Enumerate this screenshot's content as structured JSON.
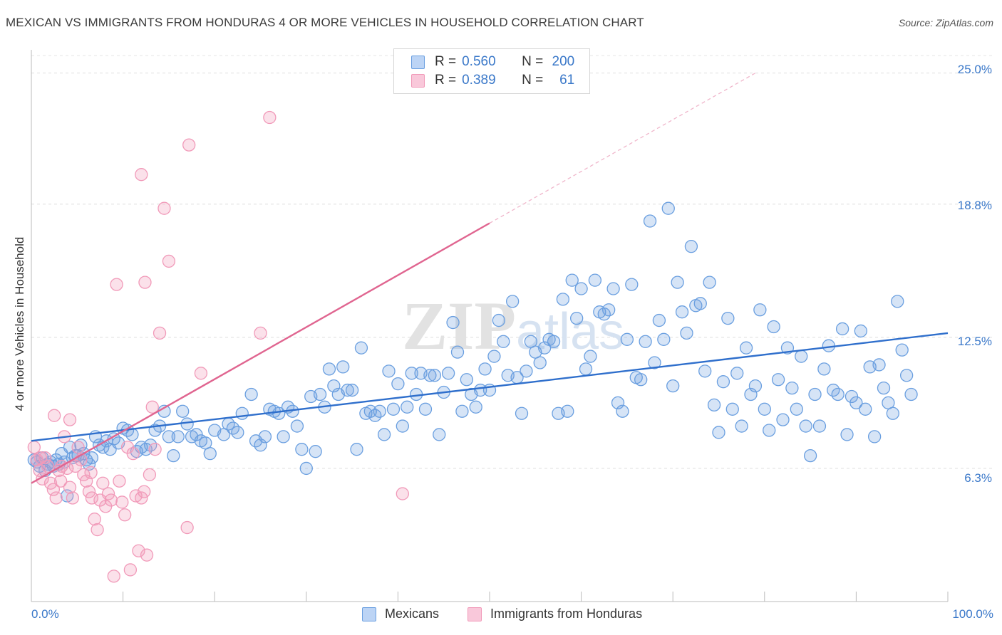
{
  "title": "MEXICAN VS IMMIGRANTS FROM HONDURAS 4 OR MORE VEHICLES IN HOUSEHOLD CORRELATION CHART",
  "source": "Source: ZipAtlas.com",
  "watermark": "ZIPatlas",
  "legend": {
    "series1": {
      "r_label": "R = ",
      "r_value": "0.560",
      "n_label": "N = ",
      "n_value": "200"
    },
    "series2": {
      "r_label": "R = ",
      "r_value": "0.389",
      "n_label": "N = ",
      "n_value": "61"
    }
  },
  "chart_data": {
    "type": "scatter",
    "ylabel": "4 or more Vehicles in Household",
    "xlabel": "",
    "x_tick_labels": [
      "0.0%",
      "100.0%"
    ],
    "y_tick_labels": [
      "6.3%",
      "12.5%",
      "18.8%",
      "25.0%"
    ],
    "y_ticks": [
      6.3,
      12.5,
      18.8,
      25.0
    ],
    "xlim": [
      0,
      100
    ],
    "ylim": [
      0,
      26.1
    ],
    "grid": true,
    "legend_position": "top-center",
    "colors": {
      "mexicans": "#6a9fe0",
      "honduras": "#f19ab9",
      "mexicans_line": "#2f6fcc",
      "honduras_line": "#e06590"
    },
    "series": [
      {
        "name": "Mexicans",
        "trend": {
          "x0": 0,
          "y0": 7.6,
          "x1": 100,
          "y1": 12.7
        },
        "points": [
          [
            0.3,
            6.7
          ],
          [
            0.6,
            6.6
          ],
          [
            0.9,
            6.4
          ],
          [
            1.2,
            6.8
          ],
          [
            1.5,
            6.2
          ],
          [
            1.8,
            6.5
          ],
          [
            2.1,
            6.6
          ],
          [
            2.4,
            6.4
          ],
          [
            2.7,
            6.7
          ],
          [
            3.0,
            6.5
          ],
          [
            3.3,
            7.0
          ],
          [
            3.6,
            6.6
          ],
          [
            3.9,
            5.0
          ],
          [
            4.2,
            7.3
          ],
          [
            4.5,
            6.8
          ],
          [
            4.8,
            6.9
          ],
          [
            5.1,
            6.9
          ],
          [
            5.4,
            7.4
          ],
          [
            5.7,
            7.0
          ],
          [
            6.0,
            6.7
          ],
          [
            6.3,
            6.5
          ],
          [
            6.6,
            6.8
          ],
          [
            7.0,
            7.8
          ],
          [
            7.4,
            7.4
          ],
          [
            7.8,
            7.3
          ],
          [
            8.2,
            7.6
          ],
          [
            8.6,
            7.2
          ],
          [
            9.0,
            7.7
          ],
          [
            9.5,
            7.5
          ],
          [
            10.0,
            8.2
          ],
          [
            10.5,
            8.1
          ],
          [
            11.0,
            7.9
          ],
          [
            11.5,
            7.1
          ],
          [
            12.0,
            7.3
          ],
          [
            12.5,
            7.2
          ],
          [
            13.0,
            7.4
          ],
          [
            13.5,
            8.1
          ],
          [
            14.0,
            8.3
          ],
          [
            14.5,
            9.0
          ],
          [
            15.0,
            7.8
          ],
          [
            15.5,
            6.9
          ],
          [
            16.0,
            7.8
          ],
          [
            16.5,
            9.0
          ],
          [
            17.0,
            8.4
          ],
          [
            17.5,
            7.8
          ],
          [
            18.0,
            7.9
          ],
          [
            18.5,
            7.6
          ],
          [
            19.0,
            7.5
          ],
          [
            19.5,
            7.0
          ],
          [
            20.0,
            8.1
          ],
          [
            21.0,
            7.9
          ],
          [
            21.5,
            8.4
          ],
          [
            22.0,
            8.2
          ],
          [
            22.5,
            8.0
          ],
          [
            23.0,
            8.9
          ],
          [
            24.0,
            9.8
          ],
          [
            24.5,
            7.6
          ],
          [
            25.0,
            7.4
          ],
          [
            25.5,
            7.8
          ],
          [
            26.0,
            9.1
          ],
          [
            26.5,
            9.0
          ],
          [
            27.0,
            8.9
          ],
          [
            27.5,
            7.8
          ],
          [
            28.0,
            9.2
          ],
          [
            28.5,
            9.0
          ],
          [
            29.0,
            8.3
          ],
          [
            29.5,
            7.2
          ],
          [
            30.0,
            6.3
          ],
          [
            30.5,
            9.7
          ],
          [
            31.0,
            7.1
          ],
          [
            31.5,
            9.8
          ],
          [
            32.0,
            9.2
          ],
          [
            32.5,
            11.0
          ],
          [
            33.0,
            10.2
          ],
          [
            33.5,
            9.8
          ],
          [
            34.0,
            11.1
          ],
          [
            34.5,
            10.0
          ],
          [
            35.0,
            10.0
          ],
          [
            35.5,
            7.2
          ],
          [
            36.0,
            12.0
          ],
          [
            36.5,
            8.9
          ],
          [
            37.0,
            9.0
          ],
          [
            37.5,
            8.8
          ],
          [
            38.0,
            9.0
          ],
          [
            38.5,
            7.9
          ],
          [
            39.0,
            10.9
          ],
          [
            39.5,
            9.1
          ],
          [
            40.0,
            10.3
          ],
          [
            40.5,
            8.3
          ],
          [
            41.0,
            9.2
          ],
          [
            41.5,
            10.8
          ],
          [
            42.0,
            9.8
          ],
          [
            42.5,
            10.8
          ],
          [
            43.0,
            9.1
          ],
          [
            43.5,
            10.7
          ],
          [
            44.0,
            10.7
          ],
          [
            44.5,
            7.9
          ],
          [
            45.0,
            9.9
          ],
          [
            45.5,
            10.8
          ],
          [
            46.0,
            13.2
          ],
          [
            46.5,
            11.8
          ],
          [
            47.0,
            9.0
          ],
          [
            47.5,
            10.5
          ],
          [
            48.0,
            9.8
          ],
          [
            48.5,
            9.2
          ],
          [
            49.0,
            10.0
          ],
          [
            49.5,
            11.0
          ],
          [
            50.0,
            10.0
          ],
          [
            50.5,
            11.6
          ],
          [
            51.0,
            13.3
          ],
          [
            51.5,
            12.3
          ],
          [
            52.0,
            10.7
          ],
          [
            52.5,
            14.2
          ],
          [
            53.0,
            10.6
          ],
          [
            53.5,
            8.9
          ],
          [
            54.0,
            10.9
          ],
          [
            54.5,
            12.3
          ],
          [
            55.0,
            11.8
          ],
          [
            55.5,
            11.3
          ],
          [
            56.0,
            12.0
          ],
          [
            56.5,
            12.4
          ],
          [
            57.0,
            12.3
          ],
          [
            57.5,
            8.9
          ],
          [
            58.0,
            14.3
          ],
          [
            58.5,
            9.0
          ],
          [
            59.0,
            15.2
          ],
          [
            59.5,
            13.4
          ],
          [
            60.0,
            14.8
          ],
          [
            60.5,
            11.0
          ],
          [
            61.0,
            11.6
          ],
          [
            61.5,
            15.2
          ],
          [
            62.0,
            13.7
          ],
          [
            62.5,
            13.6
          ],
          [
            63.0,
            13.8
          ],
          [
            63.5,
            14.8
          ],
          [
            64.0,
            9.4
          ],
          [
            64.5,
            9.0
          ],
          [
            65.0,
            12.4
          ],
          [
            65.5,
            15.0
          ],
          [
            66.0,
            10.6
          ],
          [
            66.5,
            10.5
          ],
          [
            67.0,
            12.3
          ],
          [
            67.5,
            18.0
          ],
          [
            68.0,
            11.3
          ],
          [
            68.5,
            13.3
          ],
          [
            69.0,
            12.4
          ],
          [
            69.5,
            18.6
          ],
          [
            70.0,
            10.2
          ],
          [
            70.5,
            15.1
          ],
          [
            71.0,
            13.7
          ],
          [
            71.5,
            12.7
          ],
          [
            72.0,
            16.8
          ],
          [
            72.5,
            14.0
          ],
          [
            73.0,
            14.1
          ],
          [
            73.5,
            10.9
          ],
          [
            74.0,
            15.1
          ],
          [
            74.5,
            9.3
          ],
          [
            75.0,
            8.0
          ],
          [
            75.5,
            10.4
          ],
          [
            76.0,
            13.4
          ],
          [
            76.5,
            9.1
          ],
          [
            77.0,
            10.8
          ],
          [
            77.5,
            8.3
          ],
          [
            78.0,
            12.0
          ],
          [
            78.5,
            9.8
          ],
          [
            79.0,
            10.2
          ],
          [
            79.5,
            13.8
          ],
          [
            80.0,
            9.1
          ],
          [
            80.5,
            8.1
          ],
          [
            81.0,
            13.0
          ],
          [
            81.5,
            10.5
          ],
          [
            82.0,
            8.6
          ],
          [
            82.5,
            12.0
          ],
          [
            83.0,
            10.1
          ],
          [
            83.5,
            9.1
          ],
          [
            84.0,
            11.6
          ],
          [
            84.5,
            8.3
          ],
          [
            85.0,
            6.9
          ],
          [
            85.5,
            9.8
          ],
          [
            86.0,
            8.3
          ],
          [
            86.5,
            11.0
          ],
          [
            87.0,
            12.1
          ],
          [
            87.5,
            10.0
          ],
          [
            88.0,
            9.8
          ],
          [
            88.5,
            12.9
          ],
          [
            89.0,
            7.9
          ],
          [
            89.5,
            9.7
          ],
          [
            90.0,
            9.4
          ],
          [
            90.5,
            12.8
          ],
          [
            91.0,
            9.1
          ],
          [
            91.5,
            11.1
          ],
          [
            92.0,
            7.8
          ],
          [
            92.5,
            11.2
          ],
          [
            93.0,
            10.1
          ],
          [
            93.5,
            9.4
          ],
          [
            94.0,
            8.9
          ],
          [
            94.5,
            14.2
          ],
          [
            95.0,
            11.9
          ],
          [
            95.5,
            10.7
          ],
          [
            96.0,
            9.8
          ]
        ]
      },
      {
        "name": "Immigrants from Honduras",
        "trend": {
          "x0": 0,
          "y0": 5.6,
          "x1": 50,
          "y1": 17.9,
          "dashed_x1": 79,
          "dashed_y1": 25.0
        },
        "points": [
          [
            0.3,
            7.3
          ],
          [
            0.6,
            6.7
          ],
          [
            0.9,
            6.2
          ],
          [
            1.2,
            5.8
          ],
          [
            1.5,
            6.8
          ],
          [
            1.8,
            6.4
          ],
          [
            2.1,
            5.6
          ],
          [
            2.4,
            5.3
          ],
          [
            2.7,
            4.9
          ],
          [
            3.0,
            6.2
          ],
          [
            3.3,
            6.4
          ],
          [
            3.6,
            7.8
          ],
          [
            3.9,
            6.3
          ],
          [
            4.2,
            5.4
          ],
          [
            4.5,
            4.9
          ],
          [
            4.8,
            6.4
          ],
          [
            5.1,
            7.3
          ],
          [
            5.4,
            6.7
          ],
          [
            5.7,
            6.0
          ],
          [
            6.0,
            5.7
          ],
          [
            6.3,
            5.2
          ],
          [
            6.6,
            4.9
          ],
          [
            6.9,
            3.9
          ],
          [
            7.2,
            3.4
          ],
          [
            7.5,
            4.8
          ],
          [
            7.8,
            5.6
          ],
          [
            8.1,
            4.5
          ],
          [
            8.4,
            5.1
          ],
          [
            8.7,
            4.8
          ],
          [
            9.0,
            1.2
          ],
          [
            9.3,
            15.0
          ],
          [
            9.6,
            5.7
          ],
          [
            9.9,
            4.7
          ],
          [
            10.2,
            4.1
          ],
          [
            10.5,
            7.3
          ],
          [
            10.8,
            1.5
          ],
          [
            11.1,
            7.0
          ],
          [
            11.4,
            5.0
          ],
          [
            11.7,
            2.4
          ],
          [
            12.0,
            4.9
          ],
          [
            12.3,
            5.2
          ],
          [
            12.6,
            2.2
          ],
          [
            12.9,
            6.0
          ],
          [
            13.2,
            9.2
          ],
          [
            13.5,
            7.2
          ],
          [
            12.0,
            20.2
          ],
          [
            14.0,
            12.7
          ],
          [
            14.5,
            18.6
          ],
          [
            15.0,
            16.1
          ],
          [
            17.2,
            21.6
          ],
          [
            17.0,
            3.5
          ],
          [
            18.5,
            10.8
          ],
          [
            25.0,
            12.7
          ],
          [
            26.0,
            22.9
          ],
          [
            40.5,
            5.1
          ],
          [
            12.4,
            15.1
          ],
          [
            2.5,
            8.8
          ],
          [
            4.2,
            8.6
          ],
          [
            1.0,
            6.8
          ],
          [
            3.2,
            5.7
          ],
          [
            6.5,
            6.1
          ]
        ]
      }
    ]
  },
  "bottom_legend": {
    "series1": "Mexicans",
    "series2": "Immigrants from Honduras"
  }
}
